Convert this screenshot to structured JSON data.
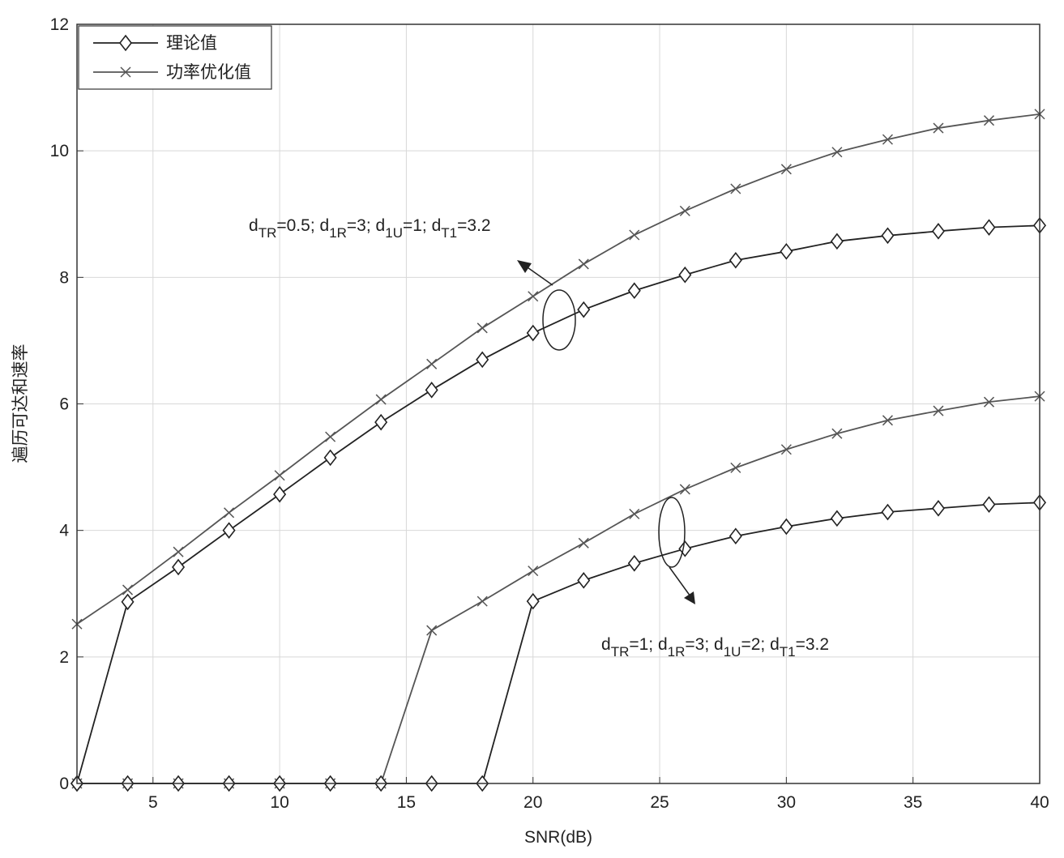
{
  "chart_data": {
    "type": "line",
    "xlabel": "SNR(dB)",
    "ylabel": "遍历可达和速率",
    "x": [
      2,
      4,
      6,
      8,
      10,
      12,
      14,
      16,
      18,
      20,
      22,
      24,
      26,
      28,
      30,
      32,
      34,
      36,
      38,
      40
    ],
    "xlim": [
      2,
      40
    ],
    "xticks": [
      5,
      10,
      15,
      20,
      25,
      30,
      35,
      40
    ],
    "ylim": [
      0,
      12
    ],
    "yticks": [
      0,
      2,
      4,
      6,
      8,
      10,
      12
    ],
    "grid": true,
    "legend_position": "upper left",
    "series": [
      {
        "name": "理论值",
        "marker": "diamond",
        "color": "#222222",
        "curves": [
          [
            0,
            2.87,
            3.42,
            4.0,
            4.57,
            5.15,
            5.71,
            6.22,
            6.7,
            7.12,
            7.49,
            7.79,
            8.04,
            8.27,
            8.41,
            8.57,
            8.66,
            8.73,
            8.79,
            8.82
          ],
          [
            0,
            0,
            0,
            0,
            0,
            0,
            0,
            0,
            0,
            2.88,
            3.21,
            3.48,
            3.71,
            3.91,
            4.06,
            4.19,
            4.29,
            4.35,
            4.41,
            4.44
          ]
        ]
      },
      {
        "name": "功率优化值",
        "marker": "x",
        "color": "#555555",
        "curves": [
          [
            2.52,
            3.06,
            3.66,
            4.28,
            4.87,
            5.48,
            6.07,
            6.63,
            7.2,
            7.7,
            8.21,
            8.67,
            9.05,
            9.4,
            9.71,
            9.98,
            10.18,
            10.36,
            10.48,
            10.58
          ],
          [
            0,
            0,
            0,
            0,
            0,
            0,
            0,
            2.42,
            2.88,
            3.36,
            3.8,
            4.26,
            4.65,
            4.99,
            5.28,
            5.53,
            5.74,
            5.89,
            6.03,
            6.12
          ]
        ]
      }
    ],
    "annotations": [
      [
        {
          "base": "d",
          "sub": "TR",
          "tail": "=0.5; "
        },
        {
          "base": "d",
          "sub": "1R",
          "tail": "=3; "
        },
        {
          "base": "d",
          "sub": "1U",
          "tail": "=1; "
        },
        {
          "base": "d",
          "sub": "T1",
          "tail": "=3.2"
        }
      ],
      [
        {
          "base": "d",
          "sub": "TR",
          "tail": "=1; "
        },
        {
          "base": "d",
          "sub": "1R",
          "tail": "=3; "
        },
        {
          "base": "d",
          "sub": "1U",
          "tail": "=2; "
        },
        {
          "base": "d",
          "sub": "T1",
          "tail": "=3.2"
        }
      ]
    ]
  }
}
